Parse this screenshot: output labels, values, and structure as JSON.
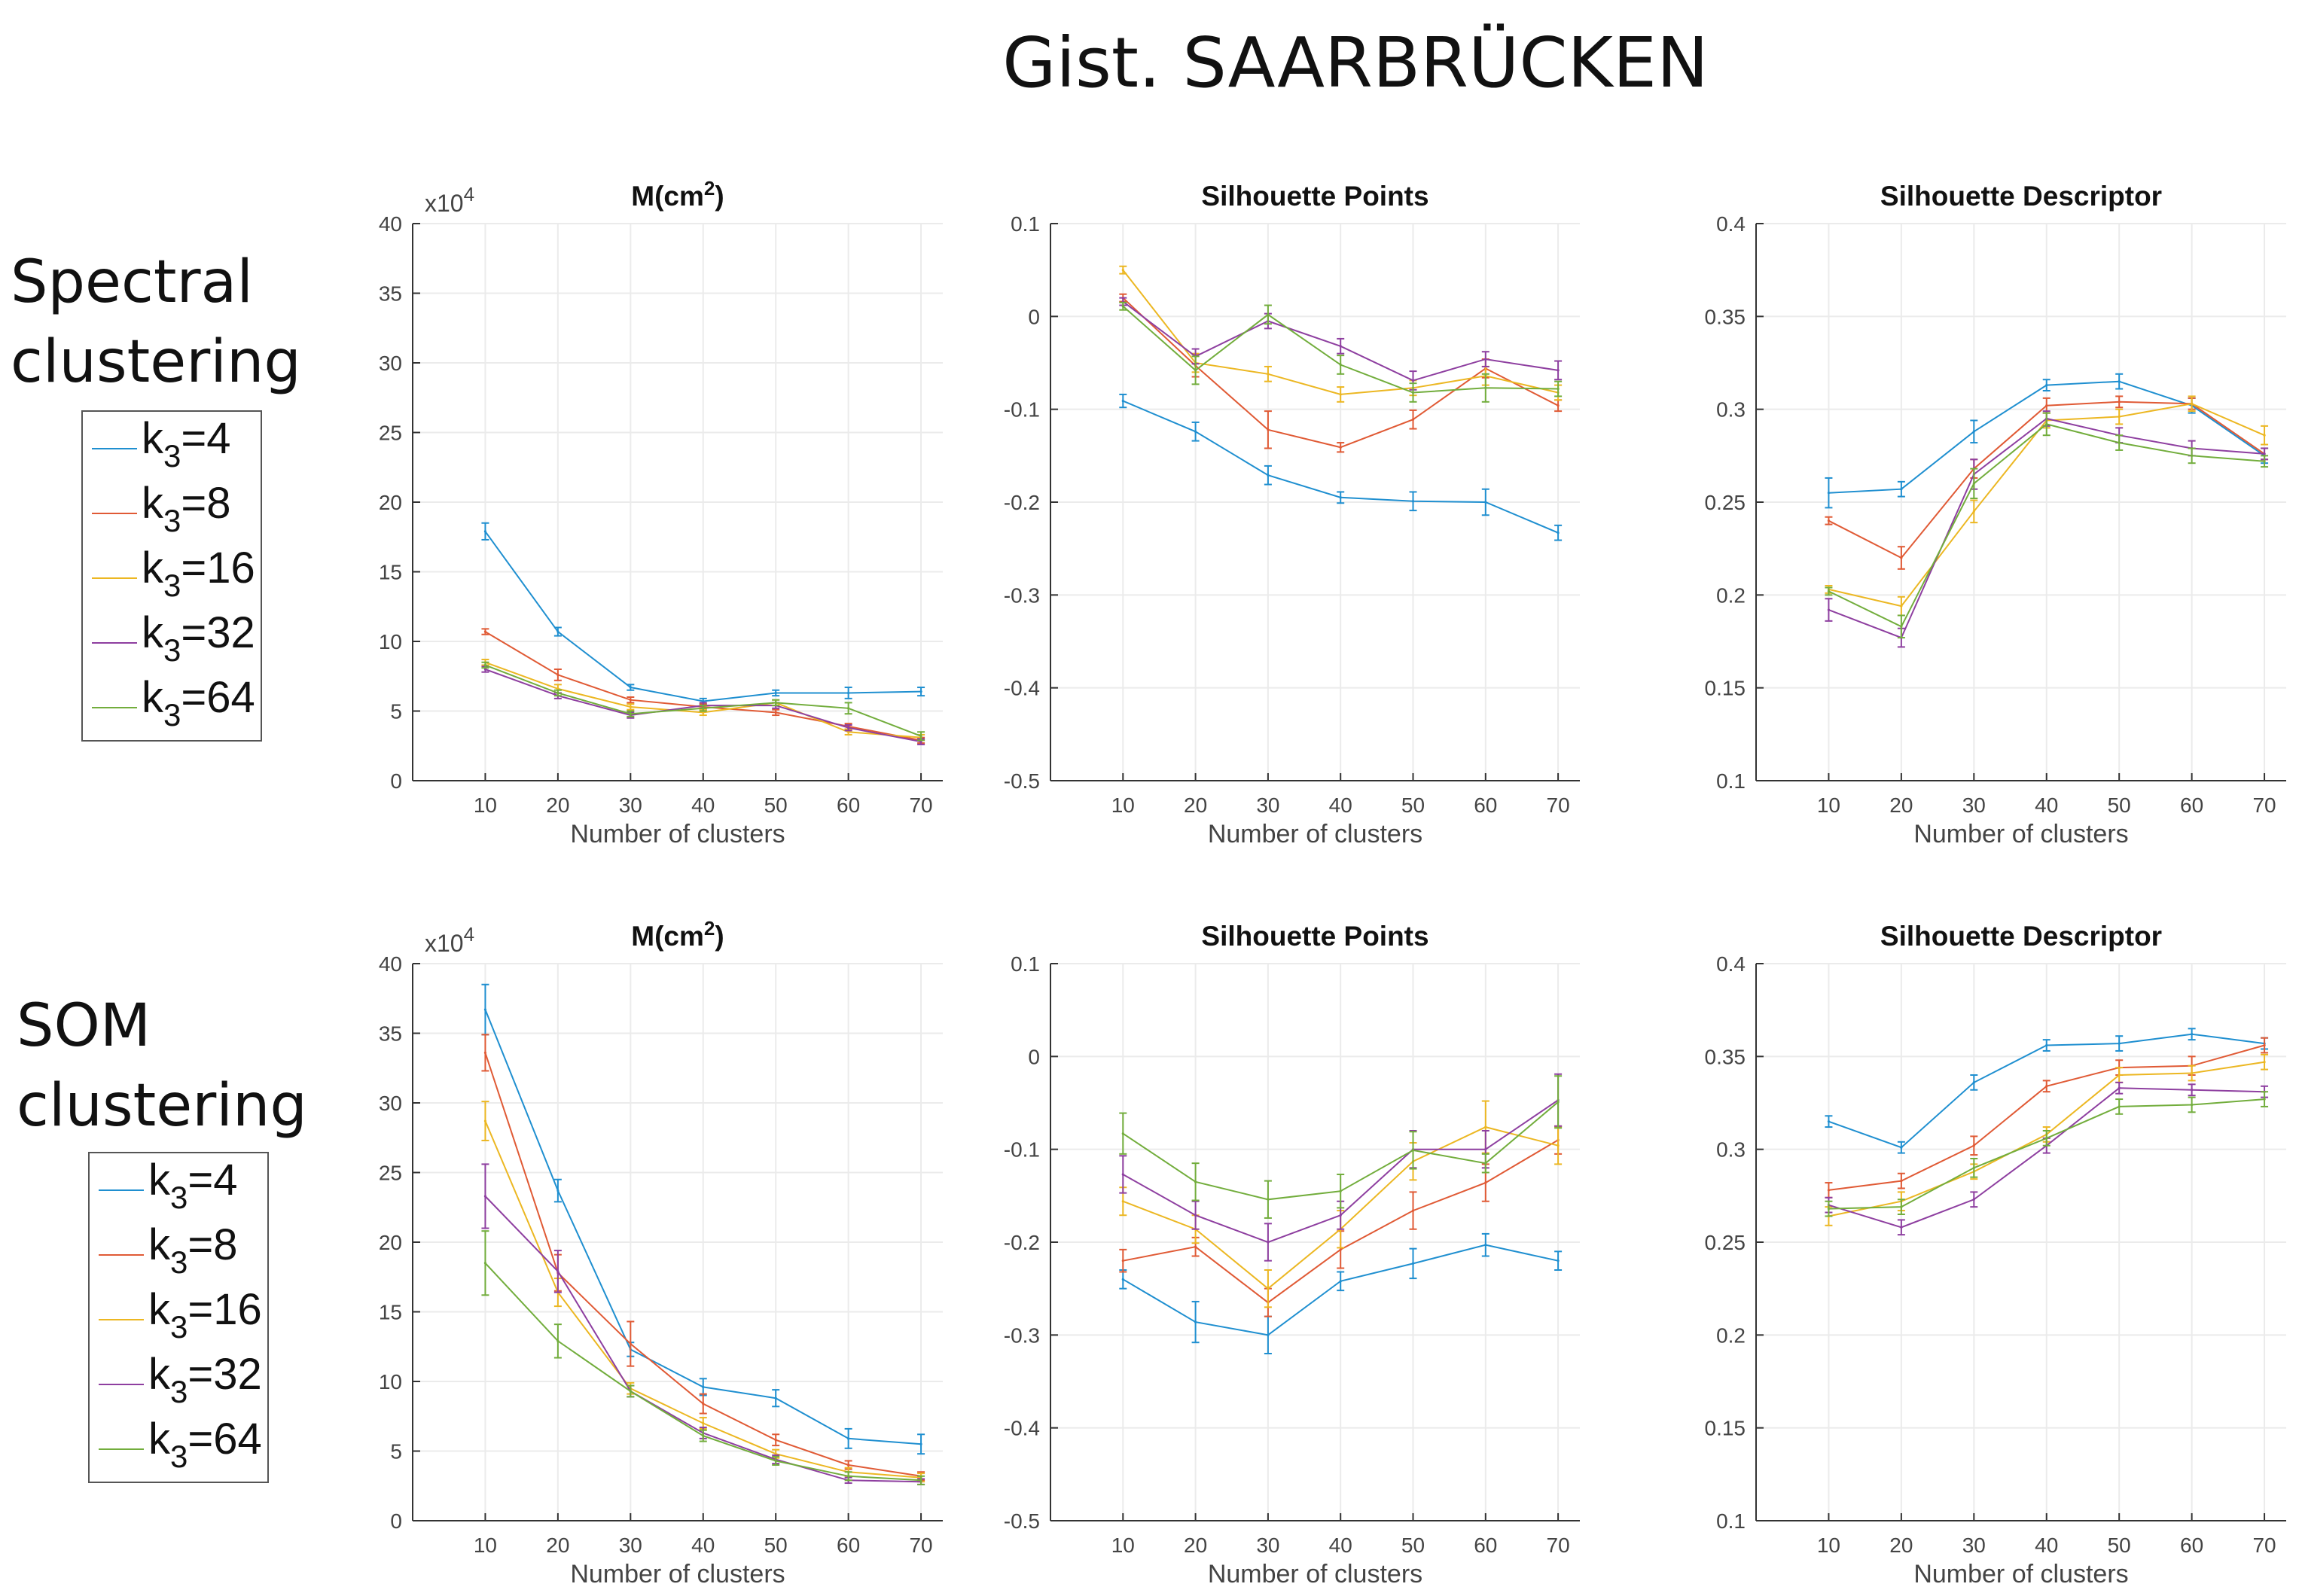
{
  "page_title": "Gist. SAARBRÜCKEN",
  "rows": [
    {
      "label_line1": "Spectral",
      "label_line2": "clustering"
    },
    {
      "label_line1": "SOM",
      "label_line2": "clustering"
    }
  ],
  "legend": [
    {
      "base": "k",
      "sub": "3",
      "suffix": "=4"
    },
    {
      "base": "k",
      "sub": "3",
      "suffix": "=8"
    },
    {
      "base": "k",
      "sub": "3",
      "suffix": "=16"
    },
    {
      "base": "k",
      "sub": "3",
      "suffix": "=32"
    },
    {
      "base": "k",
      "sub": "3",
      "suffix": "=64"
    }
  ],
  "series_colors": [
    "#1f8fd0",
    "#e05a35",
    "#ecb722",
    "#8e3fa0",
    "#72ad3c"
  ],
  "chart_data": [
    {
      "type": "line",
      "title": "M(cm",
      "title_sup": "2",
      "title_close": ")",
      "xlabel": "Number of clusters",
      "ylabel": "",
      "multiplier": "x10",
      "multiplier_exp": "4",
      "x": [
        10,
        20,
        30,
        40,
        50,
        60,
        70
      ],
      "xlim": [
        0,
        73
      ],
      "ylim": [
        0,
        40
      ],
      "yticks": [
        "0",
        "5",
        "10",
        "15",
        "20",
        "25",
        "30",
        "35",
        "40"
      ],
      "ytick_values": [
        0,
        5,
        10,
        15,
        20,
        25,
        30,
        35,
        40
      ],
      "grid": true,
      "series": [
        {
          "name": "k3=4",
          "values": [
            17.9,
            10.7,
            6.7,
            5.7,
            6.3,
            6.3,
            6.4
          ],
          "err": [
            0.6,
            0.3,
            0.2,
            0.2,
            0.2,
            0.4,
            0.3
          ]
        },
        {
          "name": "k3=8",
          "values": [
            10.7,
            7.6,
            5.8,
            5.3,
            4.9,
            3.9,
            2.9
          ],
          "err": [
            0.2,
            0.4,
            0.2,
            0.2,
            0.2,
            0.2,
            0.2
          ]
        },
        {
          "name": "k3=16",
          "values": [
            8.5,
            6.6,
            5.3,
            4.9,
            5.6,
            3.5,
            3.1
          ],
          "err": [
            0.2,
            0.3,
            0.2,
            0.2,
            0.2,
            0.2,
            0.2
          ]
        },
        {
          "name": "k3=32",
          "values": [
            8.0,
            6.1,
            4.7,
            5.4,
            5.4,
            3.8,
            2.8
          ],
          "err": [
            0.2,
            0.2,
            0.2,
            0.2,
            0.2,
            0.2,
            0.2
          ]
        },
        {
          "name": "k3=64",
          "values": [
            8.3,
            6.3,
            4.8,
            5.2,
            5.6,
            5.2,
            3.2
          ],
          "err": [
            0.2,
            0.2,
            0.2,
            0.2,
            0.2,
            0.4,
            0.3
          ]
        }
      ]
    },
    {
      "type": "line",
      "title": "Silhouette Points",
      "xlabel": "Number of clusters",
      "ylabel": "",
      "x": [
        10,
        20,
        30,
        40,
        50,
        60,
        70
      ],
      "xlim": [
        0,
        73
      ],
      "ylim": [
        -0.5,
        0.1
      ],
      "yticks": [
        "-0.5",
        "-0.4",
        "-0.3",
        "-0.2",
        "-0.1",
        "0",
        "0.1"
      ],
      "ytick_values": [
        -0.5,
        -0.4,
        -0.3,
        -0.2,
        -0.1,
        0,
        0.1
      ],
      "grid": true,
      "series": [
        {
          "name": "k3=4",
          "values": [
            -0.091,
            -0.124,
            -0.171,
            -0.195,
            -0.199,
            -0.2,
            -0.233
          ],
          "err": [
            0.007,
            0.01,
            0.01,
            0.006,
            0.01,
            0.014,
            0.008
          ]
        },
        {
          "name": "k3=8",
          "values": [
            0.02,
            -0.053,
            -0.122,
            -0.141,
            -0.111,
            -0.056,
            -0.096
          ],
          "err": [
            0.004,
            0.012,
            0.02,
            0.005,
            0.01,
            0.01,
            0.006
          ]
        },
        {
          "name": "k3=16",
          "values": [
            0.05,
            -0.05,
            -0.062,
            -0.084,
            -0.077,
            -0.064,
            -0.082
          ],
          "err": [
            0.004,
            0.01,
            0.008,
            0.008,
            0.008,
            0.01,
            0.008
          ]
        },
        {
          "name": "k3=32",
          "values": [
            0.016,
            -0.043,
            -0.005,
            -0.032,
            -0.069,
            -0.046,
            -0.058
          ],
          "err": [
            0.004,
            0.008,
            0.008,
            0.008,
            0.01,
            0.008,
            0.01
          ]
        },
        {
          "name": "k3=64",
          "values": [
            0.011,
            -0.058,
            0.002,
            -0.052,
            -0.082,
            -0.077,
            -0.078
          ],
          "err": [
            0.004,
            0.015,
            0.01,
            0.01,
            0.01,
            0.015,
            0.008
          ]
        }
      ]
    },
    {
      "type": "line",
      "title": "Silhouette Descriptor",
      "xlabel": "Number of clusters",
      "ylabel": "",
      "x": [
        10,
        20,
        30,
        40,
        50,
        60,
        70
      ],
      "xlim": [
        0,
        73
      ],
      "ylim": [
        0.1,
        0.4
      ],
      "yticks": [
        "0.1",
        "0.15",
        "0.2",
        "0.25",
        "0.3",
        "0.35",
        "0.4"
      ],
      "ytick_values": [
        0.1,
        0.15,
        0.2,
        0.25,
        0.3,
        0.35,
        0.4
      ],
      "grid": true,
      "series": [
        {
          "name": "k3=4",
          "values": [
            0.255,
            0.257,
            0.288,
            0.313,
            0.315,
            0.302,
            0.275
          ],
          "err": [
            0.008,
            0.004,
            0.006,
            0.003,
            0.004,
            0.004,
            0.004
          ]
        },
        {
          "name": "k3=8",
          "values": [
            0.24,
            0.22,
            0.268,
            0.302,
            0.304,
            0.303,
            0.276
          ],
          "err": [
            0.002,
            0.006,
            0.005,
            0.004,
            0.003,
            0.003,
            0.003
          ]
        },
        {
          "name": "k3=16",
          "values": [
            0.203,
            0.194,
            0.245,
            0.294,
            0.296,
            0.303,
            0.286
          ],
          "err": [
            0.002,
            0.005,
            0.006,
            0.004,
            0.004,
            0.004,
            0.005
          ]
        },
        {
          "name": "k3=32",
          "values": [
            0.192,
            0.177,
            0.265,
            0.295,
            0.286,
            0.279,
            0.276
          ],
          "err": [
            0.006,
            0.005,
            0.008,
            0.004,
            0.004,
            0.004,
            0.003
          ]
        },
        {
          "name": "k3=64",
          "values": [
            0.202,
            0.183,
            0.26,
            0.292,
            0.282,
            0.275,
            0.272
          ],
          "err": [
            0.002,
            0.006,
            0.008,
            0.006,
            0.004,
            0.004,
            0.003
          ]
        }
      ]
    },
    {
      "type": "line",
      "title": "M(cm",
      "title_sup": "2",
      "title_close": ")",
      "xlabel": "Number of clusters",
      "ylabel": "",
      "multiplier": "x10",
      "multiplier_exp": "4",
      "x": [
        10,
        20,
        30,
        40,
        50,
        60,
        70
      ],
      "xlim": [
        0,
        73
      ],
      "ylim": [
        0,
        40
      ],
      "yticks": [
        "0",
        "5",
        "10",
        "15",
        "20",
        "25",
        "30",
        "35",
        "40"
      ],
      "ytick_values": [
        0,
        5,
        10,
        15,
        20,
        25,
        30,
        35,
        40
      ],
      "grid": true,
      "series": [
        {
          "name": "k3=4",
          "values": [
            36.7,
            23.7,
            12.3,
            9.6,
            8.8,
            5.9,
            5.5
          ],
          "err": [
            1.8,
            0.8,
            0.5,
            0.6,
            0.6,
            0.7,
            0.7
          ]
        },
        {
          "name": "k3=8",
          "values": [
            33.6,
            17.8,
            12.7,
            8.4,
            5.8,
            4.0,
            3.2
          ],
          "err": [
            1.3,
            1.3,
            1.6,
            0.7,
            0.4,
            0.3,
            0.3
          ]
        },
        {
          "name": "k3=16",
          "values": [
            28.7,
            16.4,
            9.5,
            7.0,
            4.8,
            3.5,
            3.1
          ],
          "err": [
            1.4,
            1.0,
            0.4,
            0.4,
            0.3,
            0.3,
            0.3
          ]
        },
        {
          "name": "k3=32",
          "values": [
            23.3,
            17.9,
            9.3,
            6.3,
            4.4,
            2.9,
            2.8
          ],
          "err": [
            2.3,
            1.5,
            0.4,
            0.4,
            0.3,
            0.2,
            0.2
          ]
        },
        {
          "name": "k3=64",
          "values": [
            18.5,
            12.9,
            9.3,
            6.1,
            4.3,
            3.2,
            2.9
          ],
          "err": [
            2.3,
            1.2,
            0.4,
            0.4,
            0.3,
            0.3,
            0.3
          ]
        }
      ]
    },
    {
      "type": "line",
      "title": "Silhouette Points",
      "xlabel": "Number of clusters",
      "ylabel": "",
      "x": [
        10,
        20,
        30,
        40,
        50,
        60,
        70
      ],
      "xlim": [
        0,
        73
      ],
      "ylim": [
        -0.5,
        0.1
      ],
      "yticks": [
        "-0.5",
        "-0.4",
        "-0.3",
        "-0.2",
        "-0.1",
        "0",
        "0.1"
      ],
      "ytick_values": [
        -0.5,
        -0.4,
        -0.3,
        -0.2,
        -0.1,
        0,
        0.1
      ],
      "grid": true,
      "series": [
        {
          "name": "k3=4",
          "values": [
            -0.24,
            -0.286,
            -0.3,
            -0.242,
            -0.223,
            -0.203,
            -0.22
          ],
          "err": [
            0.01,
            0.022,
            0.02,
            0.01,
            0.016,
            0.012,
            0.01
          ]
        },
        {
          "name": "k3=8",
          "values": [
            -0.22,
            -0.205,
            -0.265,
            -0.208,
            -0.166,
            -0.136,
            -0.09
          ],
          "err": [
            0.012,
            0.01,
            0.015,
            0.02,
            0.02,
            0.02,
            0.015
          ]
        },
        {
          "name": "k3=16",
          "values": [
            -0.156,
            -0.186,
            -0.25,
            -0.186,
            -0.113,
            -0.076,
            -0.096
          ],
          "err": [
            0.015,
            0.015,
            0.02,
            0.02,
            0.02,
            0.028,
            0.02
          ]
        },
        {
          "name": "k3=32",
          "values": [
            -0.127,
            -0.171,
            -0.2,
            -0.171,
            -0.1,
            -0.1,
            -0.047
          ],
          "err": [
            0.02,
            0.015,
            0.02,
            0.015,
            0.02,
            0.02,
            0.028
          ]
        },
        {
          "name": "k3=64",
          "values": [
            -0.083,
            -0.135,
            -0.154,
            -0.145,
            -0.101,
            -0.115,
            -0.049
          ],
          "err": [
            0.022,
            0.02,
            0.02,
            0.018,
            0.02,
            0.01,
            0.028
          ]
        }
      ]
    },
    {
      "type": "line",
      "title": "Silhouette Descriptor",
      "xlabel": "Number of clusters",
      "ylabel": "",
      "x": [
        10,
        20,
        30,
        40,
        50,
        60,
        70
      ],
      "xlim": [
        0,
        73
      ],
      "ylim": [
        0.1,
        0.4
      ],
      "yticks": [
        "0.1",
        "0.15",
        "0.2",
        "0.25",
        "0.3",
        "0.35",
        "0.4"
      ],
      "ytick_values": [
        0.1,
        0.15,
        0.2,
        0.25,
        0.3,
        0.35,
        0.4
      ],
      "grid": true,
      "series": [
        {
          "name": "k3=4",
          "values": [
            0.315,
            0.301,
            0.336,
            0.356,
            0.357,
            0.362,
            0.357
          ],
          "err": [
            0.003,
            0.003,
            0.004,
            0.003,
            0.004,
            0.003,
            0.003
          ]
        },
        {
          "name": "k3=8",
          "values": [
            0.278,
            0.283,
            0.302,
            0.334,
            0.344,
            0.345,
            0.356
          ],
          "err": [
            0.004,
            0.004,
            0.005,
            0.003,
            0.004,
            0.005,
            0.004
          ]
        },
        {
          "name": "k3=16",
          "values": [
            0.264,
            0.272,
            0.288,
            0.308,
            0.34,
            0.341,
            0.347
          ],
          "err": [
            0.005,
            0.005,
            0.004,
            0.004,
            0.004,
            0.004,
            0.004
          ]
        },
        {
          "name": "k3=32",
          "values": [
            0.27,
            0.258,
            0.273,
            0.302,
            0.333,
            0.332,
            0.331
          ],
          "err": [
            0.004,
            0.004,
            0.004,
            0.004,
            0.003,
            0.003,
            0.003
          ]
        },
        {
          "name": "k3=64",
          "values": [
            0.268,
            0.269,
            0.29,
            0.306,
            0.323,
            0.324,
            0.327
          ],
          "err": [
            0.004,
            0.004,
            0.005,
            0.004,
            0.004,
            0.004,
            0.004
          ]
        }
      ]
    }
  ]
}
